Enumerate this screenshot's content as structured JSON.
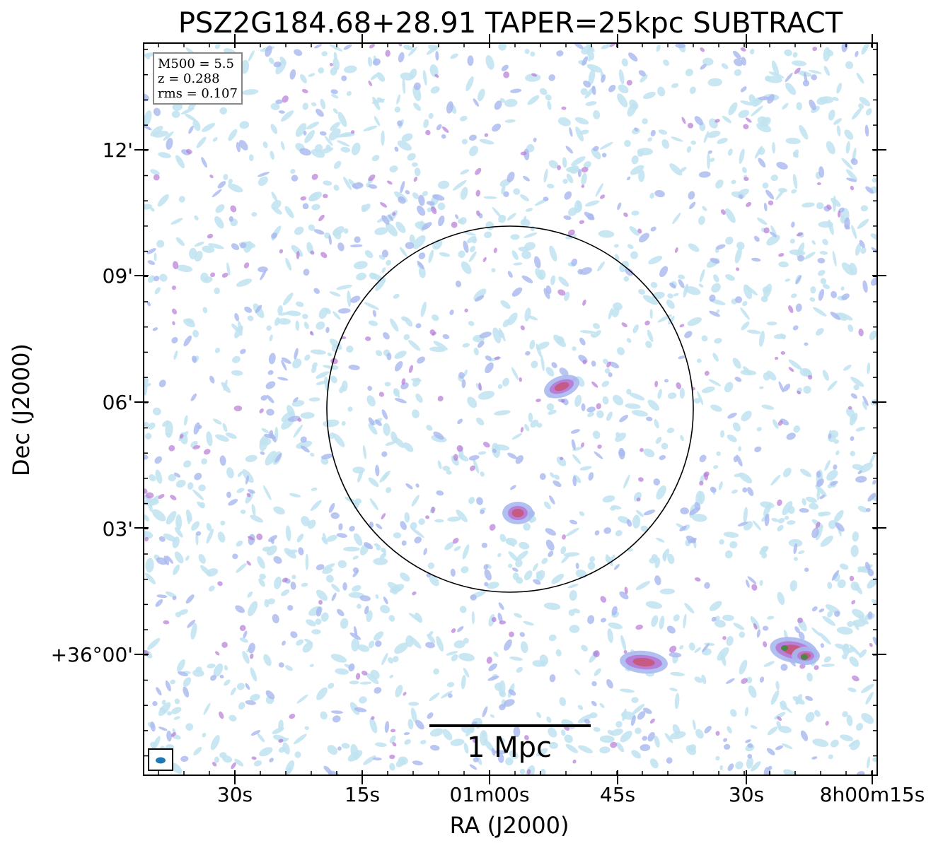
{
  "title": "PSZ2G184.68+28.91 TAPER=25kpc SUBTRACT",
  "info": {
    "line1": "M500 = 5.5",
    "line2": "z = 0.288",
    "line3": "rms = 0.107"
  },
  "axes": {
    "xlabel": "RA (J2000)",
    "ylabel": "Dec (J2000)",
    "x_ticks": [
      "30s",
      "15s",
      "01m00s",
      "45s",
      "30s",
      "8h00m15s"
    ],
    "y_ticks": [
      "12'",
      "09'",
      "06'",
      "03'",
      "+36°00'"
    ]
  },
  "scalebar": {
    "label": "1 Mpc"
  },
  "colors": {
    "noise_light": "#bfe3f0",
    "noise_mid": "#a9b8ef",
    "emission": "#b77bd6",
    "peak": "#c5587e",
    "core": "#3f8a3a",
    "beam": "#1f77b4"
  }
}
